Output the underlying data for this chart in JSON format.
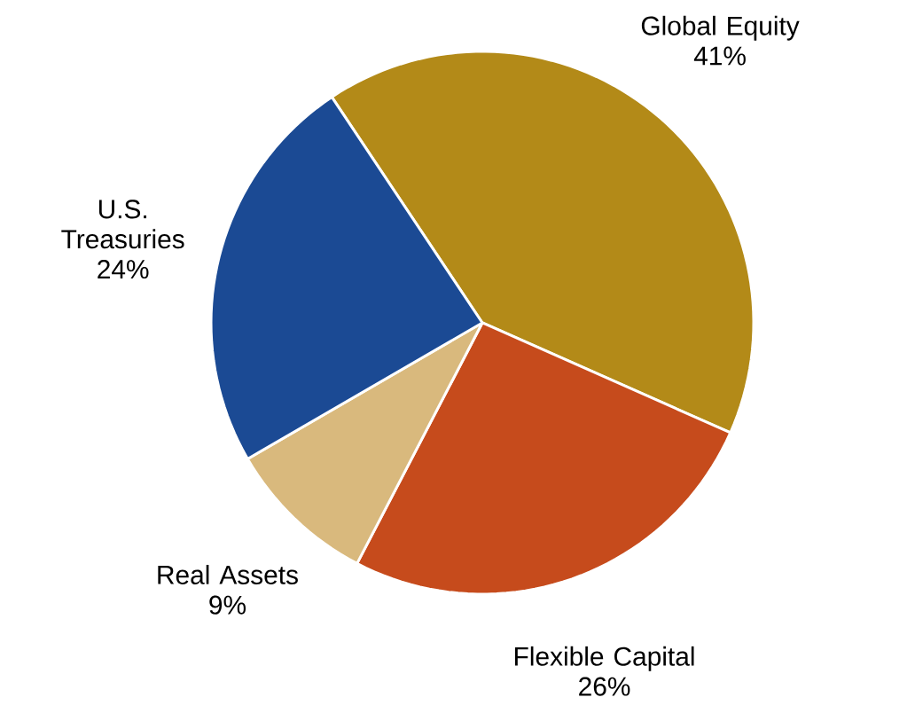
{
  "chart_data": {
    "type": "pie",
    "categories": [
      "Global Equity",
      "Flexible Capital",
      "Real Assets",
      "U.S. Treasuries"
    ],
    "values": [
      41,
      26,
      9,
      24
    ],
    "value_labels": [
      "41%",
      "26%",
      "9%",
      "24%"
    ],
    "colors": [
      "#b38a18",
      "#c64b1c",
      "#d9b97d",
      "#1b4a94"
    ]
  }
}
